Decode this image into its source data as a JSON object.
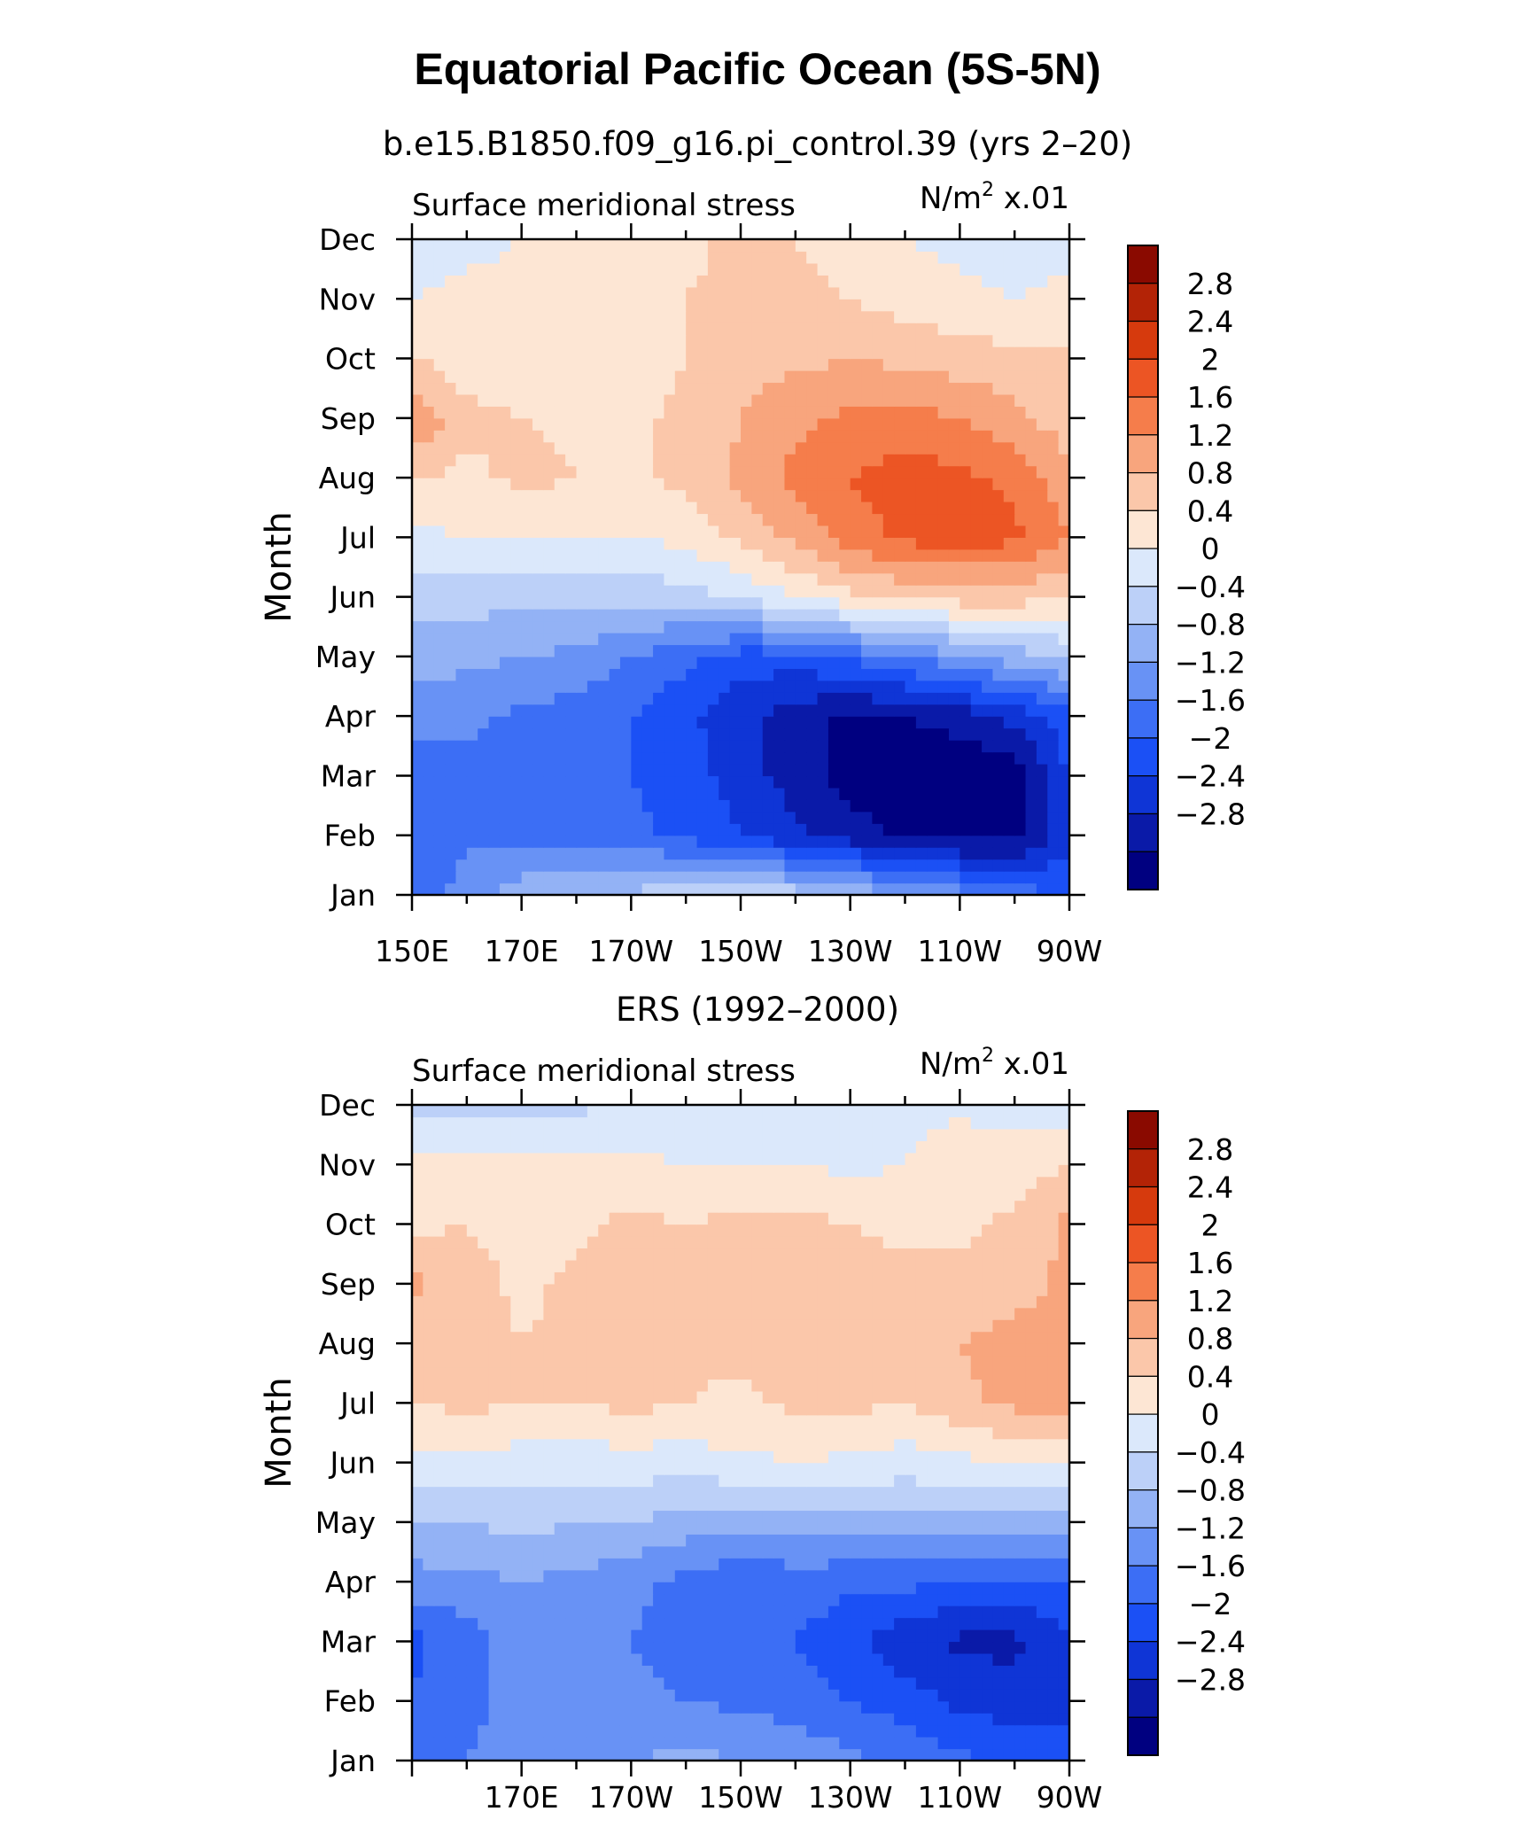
{
  "figure": {
    "title": "Equatorial Pacific Ocean (5S-5N)"
  },
  "colors": {
    "levels": [
      "#000080",
      "#0a1aa8",
      "#0f35d6",
      "#1b50f5",
      "#3c6ef5",
      "#6892f5",
      "#93b2f5",
      "#bcd0f8",
      "#dbe8fb",
      "#fde6d4",
      "#fbc7aa",
      "#f8a57d",
      "#f57d4b",
      "#ec5524",
      "#d63a0d",
      "#b32306",
      "#8a0a00"
    ]
  },
  "chart_data": [
    {
      "type": "heatmap",
      "subtitle": "b.e15.B1850.f09_g16.pi_control.39 (yrs 2–20)",
      "left_label": "Surface meridional stress",
      "right_label": "N/m",
      "right_label_sup": "2",
      "right_label_suffix": " x.01",
      "ylabel": "Month",
      "xlim": [
        150,
        270
      ],
      "x_ticks": [
        "150E",
        "170E",
        "170W",
        "150W",
        "130W",
        "110W",
        "90W"
      ],
      "y_ticks": [
        "Jan",
        "Feb",
        "Mar",
        "Apr",
        "May",
        "Jun",
        "Jul",
        "Aug",
        "Sep",
        "Oct",
        "Nov",
        "Dec"
      ],
      "colorbar_labels": [
        "2.8",
        "2.4",
        "2",
        "1.6",
        "1.2",
        "0.8",
        "0.4",
        "0",
        "−0.4",
        "−0.8",
        "−1.2",
        "−1.6",
        "−2",
        "−2.4",
        "−2.8"
      ],
      "x": [
        150,
        160,
        170,
        180,
        190,
        200,
        210,
        220,
        230,
        240,
        250,
        260,
        270
      ],
      "months": [
        "Jan",
        "Feb",
        "Mar",
        "Apr",
        "May",
        "Jun",
        "Jul",
        "Aug",
        "Sep",
        "Oct",
        "Nov",
        "Dec"
      ],
      "values": [
        [
          -1.5,
          -1.0,
          -0.6,
          -0.4,
          -0.3,
          -0.2,
          0.0,
          -0.2,
          -0.5,
          -0.7,
          -1.0,
          -1.4,
          -1.6
        ],
        [
          -1.4,
          -1.3,
          -1.3,
          -1.3,
          -1.5,
          -1.7,
          -2.0,
          -2.3,
          -2.6,
          -2.9,
          -3.0,
          -2.9,
          -2.2
        ],
        [
          -1.5,
          -1.3,
          -1.4,
          -1.4,
          -1.6,
          -1.8,
          -2.2,
          -2.6,
          -3.0,
          -3.1,
          -3.2,
          -3.0,
          -2.0
        ],
        [
          -1.0,
          -1.1,
          -1.3,
          -1.4,
          -1.6,
          -1.9,
          -2.3,
          -2.6,
          -2.9,
          -2.8,
          -2.6,
          -2.3,
          -1.7
        ],
        [
          -0.6,
          -0.7,
          -0.8,
          -0.9,
          -1.2,
          -1.5,
          -1.8,
          -1.8,
          -1.5,
          -1.2,
          -0.9,
          -0.6,
          -0.3
        ],
        [
          -0.2,
          -0.2,
          -0.3,
          -0.3,
          -0.2,
          -0.2,
          0.1,
          0.4,
          0.7,
          0.9,
          1.0,
          1.0,
          0.8
        ],
        [
          0.3,
          0.4,
          0.4,
          0.4,
          0.4,
          0.5,
          0.9,
          1.3,
          1.8,
          2.1,
          2.2,
          2.1,
          1.6
        ],
        [
          0.8,
          0.7,
          0.9,
          0.8,
          0.7,
          0.9,
          1.3,
          1.7,
          2.0,
          2.2,
          2.1,
          1.9,
          1.3
        ],
        [
          1.6,
          0.9,
          0.8,
          0.7,
          0.7,
          0.9,
          1.2,
          1.5,
          1.7,
          1.8,
          1.6,
          1.3,
          1.0
        ],
        [
          0.8,
          0.6,
          0.5,
          0.5,
          0.6,
          0.8,
          1.0,
          1.1,
          1.2,
          1.1,
          1.0,
          0.9,
          0.9
        ],
        [
          0.4,
          0.5,
          0.5,
          0.5,
          0.6,
          0.8,
          0.9,
          0.9,
          0.8,
          0.6,
          0.5,
          0.4,
          0.5
        ],
        [
          0.1,
          0.3,
          0.4,
          0.4,
          0.5,
          0.7,
          0.9,
          0.8,
          0.6,
          0.4,
          0.3,
          0.2,
          0.3
        ]
      ]
    },
    {
      "type": "heatmap",
      "subtitle": "ERS (1992–2000)",
      "left_label": "Surface meridional stress",
      "right_label": "N/m",
      "right_label_sup": "2",
      "right_label_suffix": " x.01",
      "ylabel": "Month",
      "xlim": [
        150,
        270
      ],
      "x_ticks": [
        "",
        "170E",
        "170W",
        "150W",
        "130W",
        "110W",
        "90W"
      ],
      "y_ticks": [
        "Jan",
        "Feb",
        "Mar",
        "Apr",
        "May",
        "Jun",
        "Jul",
        "Aug",
        "Sep",
        "Oct",
        "Nov",
        "Dec"
      ],
      "colorbar_labels": [
        "2.8",
        "2.4",
        "2",
        "1.6",
        "1.2",
        "0.8",
        "0.4",
        "0",
        "−0.4",
        "−0.8",
        "−1.2",
        "−1.6",
        "−2",
        "−2.4",
        "−2.8"
      ],
      "x": [
        150,
        160,
        170,
        180,
        190,
        200,
        210,
        220,
        230,
        240,
        250,
        260,
        270
      ],
      "months": [
        "Jan",
        "Feb",
        "Mar",
        "Apr",
        "May",
        "Jun",
        "Jul",
        "Aug",
        "Sep",
        "Oct",
        "Nov",
        "Dec"
      ],
      "values": [
        [
          -1.4,
          -1.2,
          -1.0,
          -1.0,
          -0.8,
          -0.7,
          -0.8,
          -0.9,
          -1.1,
          -1.3,
          -1.5,
          -1.7,
          -1.8
        ],
        [
          -1.6,
          -1.3,
          -1.1,
          -1.1,
          -1.1,
          -1.2,
          -1.3,
          -1.4,
          -1.6,
          -1.8,
          -2.1,
          -2.2,
          -2.2
        ],
        [
          -1.7,
          -1.4,
          -1.0,
          -1.0,
          -1.2,
          -1.4,
          -1.5,
          -1.6,
          -1.9,
          -2.3,
          -2.5,
          -2.5,
          -2.1
        ],
        [
          -1.0,
          -0.9,
          -0.8,
          -0.9,
          -1.1,
          -1.3,
          -1.6,
          -1.4,
          -1.5,
          -1.5,
          -1.6,
          -1.7,
          -1.6
        ],
        [
          -0.4,
          -0.4,
          -0.3,
          -0.4,
          -0.4,
          -0.6,
          -0.6,
          -0.6,
          -0.6,
          -0.5,
          -0.6,
          -0.7,
          -0.6
        ],
        [
          0.3,
          0.3,
          0.2,
          0.2,
          0.2,
          0.2,
          0.3,
          0.4,
          0.3,
          0.2,
          0.3,
          0.4,
          0.5
        ],
        [
          0.8,
          0.9,
          0.8,
          0.8,
          0.9,
          0.8,
          0.7,
          0.9,
          0.9,
          0.8,
          1.1,
          1.3,
          1.5
        ],
        [
          0.9,
          1.0,
          0.8,
          0.9,
          1.0,
          0.9,
          0.9,
          1.0,
          1.1,
          1.0,
          1.2,
          1.4,
          1.4
        ],
        [
          1.3,
          1.0,
          0.7,
          0.9,
          1.0,
          0.8,
          1.0,
          1.0,
          1.0,
          0.9,
          0.9,
          1.0,
          1.3
        ],
        [
          0.7,
          0.8,
          0.6,
          0.7,
          0.9,
          0.8,
          0.9,
          0.9,
          0.8,
          0.7,
          0.7,
          0.9,
          1.3
        ],
        [
          0.5,
          0.5,
          0.5,
          0.5,
          0.5,
          0.4,
          0.4,
          0.4,
          0.3,
          0.4,
          0.7,
          0.6,
          0.8
        ],
        [
          -0.1,
          -0.2,
          -0.1,
          -0.1,
          0.1,
          0.0,
          0.1,
          0.1,
          0.2,
          0.2,
          0.3,
          0.2,
          0.2
        ]
      ]
    }
  ]
}
